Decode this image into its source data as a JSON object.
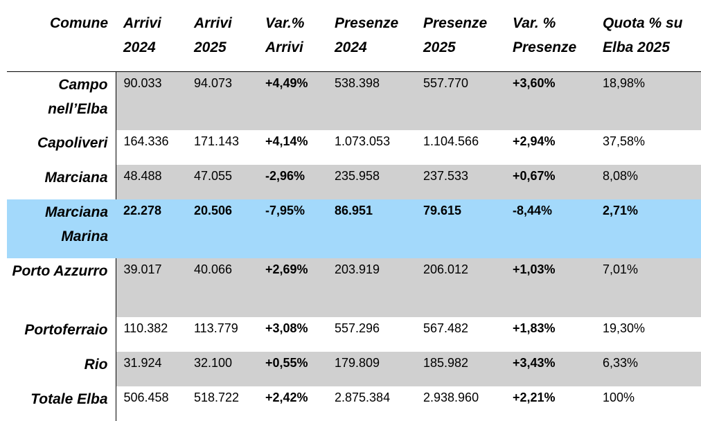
{
  "table": {
    "headers": [
      "Comune",
      "Arrivi 2024",
      "Arrivi 2025",
      "Var.% Arrivi",
      "Presenze 2024",
      "Presenze 2025",
      "Var. % Presenze",
      "Quota % su Elba 2025"
    ],
    "rows": [
      {
        "comune": "Campo nell’Elba",
        "arrivi_2024": "90.033",
        "arrivi_2025": "94.073",
        "var_arrivi": "+4,49%",
        "presenze_2024": "538.398",
        "presenze_2025": "557.770",
        "var_presenze": "+3,60%",
        "quota": "18,98%"
      },
      {
        "comune": "Capoliveri",
        "arrivi_2024": "164.336",
        "arrivi_2025": "171.143",
        "var_arrivi": "+4,14%",
        "presenze_2024": "1.073.053",
        "presenze_2025": "1.104.566",
        "var_presenze": "+2,94%",
        "quota": "37,58%"
      },
      {
        "comune": "Marciana",
        "arrivi_2024": "48.488",
        "arrivi_2025": "47.055",
        "var_arrivi": "-2,96%",
        "presenze_2024": "235.958",
        "presenze_2025": "237.533",
        "var_presenze": "+0,67%",
        "quota": "8,08%"
      },
      {
        "comune": "Marciana Marina",
        "arrivi_2024": "22.278",
        "arrivi_2025": "20.506",
        "var_arrivi": "-7,95%",
        "presenze_2024": "86.951",
        "presenze_2025": "79.615",
        "var_presenze": "-8,44%",
        "quota": "2,71%"
      },
      {
        "comune": "Porto Azzurro",
        "arrivi_2024": "39.017",
        "arrivi_2025": "40.066",
        "var_arrivi": "+2,69%",
        "presenze_2024": "203.919",
        "presenze_2025": "206.012",
        "var_presenze": "+1,03%",
        "quota": "7,01%"
      },
      {
        "comune": "Portoferraio",
        "arrivi_2024": "110.382",
        "arrivi_2025": "113.779",
        "var_arrivi": "+3,08%",
        "presenze_2024": "557.296",
        "presenze_2025": "567.482",
        "var_presenze": "+1,83%",
        "quota": "19,30%"
      },
      {
        "comune": "Rio",
        "arrivi_2024": "31.924",
        "arrivi_2025": "32.100",
        "var_arrivi": "+0,55%",
        "presenze_2024": "179.809",
        "presenze_2025": "185.982",
        "var_presenze": "+3,43%",
        "quota": "6,33%"
      },
      {
        "comune": "Totale Elba",
        "arrivi_2024": "506.458",
        "arrivi_2025": "518.722",
        "var_arrivi": "+2,42%",
        "presenze_2024": "2.875.384",
        "presenze_2025": "2.938.960",
        "var_presenze": "+2,21%",
        "quota": "100%"
      }
    ]
  },
  "colors": {
    "row_gray": "#d0d0d0",
    "row_highlight": "#a3d9fb",
    "row_white": "#ffffff"
  }
}
